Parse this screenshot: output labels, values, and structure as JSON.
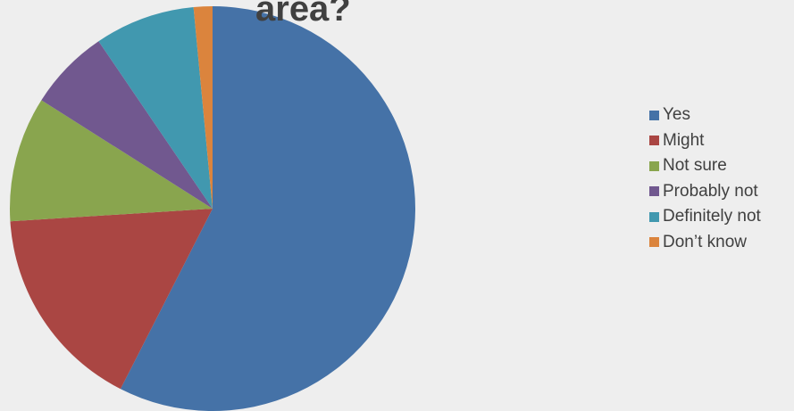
{
  "chart_data": {
    "type": "pie",
    "title": "area?",
    "categories": [
      "Yes",
      "Might",
      "Not sure",
      "Probably not",
      "Definitely not",
      "Don’t know"
    ],
    "values": [
      57.5,
      16.5,
      10.0,
      6.5,
      8.0,
      1.5
    ],
    "colors": [
      "#4572a7",
      "#aa4643",
      "#89a54e",
      "#71588f",
      "#4198af",
      "#db843d"
    ],
    "start_angle_deg": 0,
    "direction": "clockwise",
    "legend_position": "right"
  }
}
